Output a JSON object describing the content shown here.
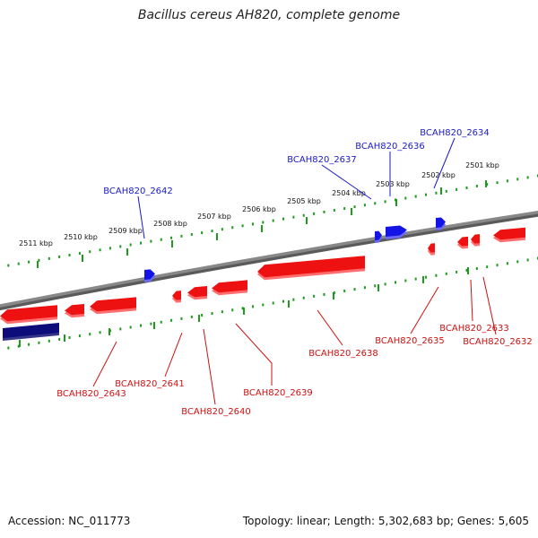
{
  "title": "Bacillus cereus AH820, complete genome",
  "footer": {
    "accession": "Accession: NC_011773",
    "summary": "Topology: linear; Length: 5,302,683 bp; Genes: 5,605"
  },
  "colors": {
    "forward_gene": "#1414e6",
    "reverse_gene": "#ee1111",
    "reverse_gene_light": "#ff6e6e",
    "selected_gene": "#0c0c7a",
    "backbone": "#888888",
    "scale_ticks": "#1e9b1e",
    "forward_label": "#1a1ac8",
    "reverse_label": "#cc1111"
  },
  "scale": {
    "unit": "kbp",
    "ticks": [
      {
        "label": "2501 kbp"
      },
      {
        "label": "2502 kbp"
      },
      {
        "label": "2503 kbp"
      },
      {
        "label": "2504 kbp"
      },
      {
        "label": "2505 kbp"
      },
      {
        "label": "2506 kbp"
      },
      {
        "label": "2507 kbp"
      },
      {
        "label": "2508 kbp"
      },
      {
        "label": "2509 kbp"
      },
      {
        "label": "2510 kbp"
      },
      {
        "label": "2511 kbp"
      }
    ]
  },
  "forward_genes": [
    {
      "label": "BCAH820_2634"
    },
    {
      "label": "BCAH820_2636"
    },
    {
      "label": "BCAH820_2637"
    },
    {
      "label": "BCAH820_2642"
    }
  ],
  "reverse_genes": [
    {
      "label": "BCAH820_2643"
    },
    {
      "label": "BCAH820_2641"
    },
    {
      "label": "BCAH820_2640"
    },
    {
      "label": "BCAH820_2639"
    },
    {
      "label": "BCAH820_2638"
    },
    {
      "label": "BCAH820_2635"
    },
    {
      "label": "BCAH820_2633"
    },
    {
      "label": "BCAH820_2632"
    }
  ]
}
